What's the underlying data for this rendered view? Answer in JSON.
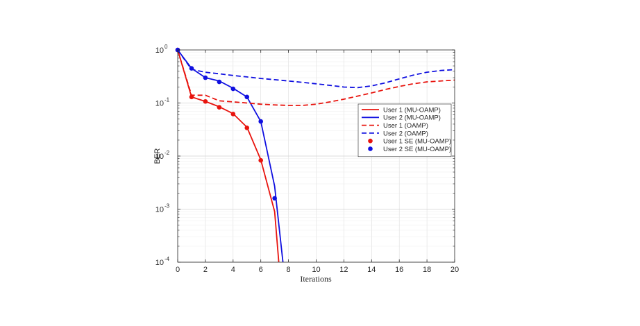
{
  "chart_data": {
    "type": "line",
    "xlabel": "Iterations",
    "ylabel": "BER",
    "xlim": [
      0,
      20
    ],
    "ylim": [
      0.0001,
      1
    ],
    "yscale": "log",
    "grid": true,
    "legend_position": "right",
    "xticks": [
      0,
      2,
      4,
      6,
      8,
      10,
      12,
      14,
      16,
      18,
      20
    ],
    "yticks": [
      {
        "value": 0.0001,
        "base": "10",
        "exp": "-4"
      },
      {
        "value": 0.001,
        "base": "10",
        "exp": "-3"
      },
      {
        "value": 0.01,
        "base": "10",
        "exp": "-2"
      },
      {
        "value": 0.1,
        "base": "10",
        "exp": "-1"
      },
      {
        "value": 1,
        "base": "10",
        "exp": "0"
      }
    ],
    "series": [
      {
        "name": "User 1 (MU-OAMP)",
        "color": "#e8140e",
        "style": "solid",
        "marker": "none",
        "x": [
          0,
          1,
          2,
          3,
          4,
          5,
          6,
          7,
          7.3
        ],
        "y": [
          1.0,
          0.13,
          0.107,
          0.085,
          0.063,
          0.035,
          0.0085,
          0.0009,
          0.0001
        ]
      },
      {
        "name": "User 2 (MU-OAMP)",
        "color": "#1010e0",
        "style": "solid",
        "marker": "none",
        "x": [
          0,
          1,
          2,
          3,
          4,
          5,
          6,
          7,
          7.6
        ],
        "y": [
          1.0,
          0.45,
          0.3,
          0.26,
          0.19,
          0.13,
          0.045,
          0.0027,
          0.0001
        ]
      },
      {
        "name": "User 1 (OAMP)",
        "color": "#e8140e",
        "style": "dashed",
        "marker": "none",
        "x": [
          0,
          1,
          2,
          3,
          4,
          5,
          6,
          7,
          8,
          9,
          10,
          11,
          12,
          13,
          14,
          15,
          16,
          17,
          18,
          19,
          20
        ],
        "y": [
          1.0,
          0.14,
          0.14,
          0.11,
          0.105,
          0.1,
          0.095,
          0.092,
          0.09,
          0.09,
          0.095,
          0.105,
          0.118,
          0.135,
          0.155,
          0.18,
          0.205,
          0.23,
          0.25,
          0.26,
          0.27
        ]
      },
      {
        "name": "User 2 (OAMP)",
        "color": "#1010e0",
        "style": "dashed",
        "marker": "none",
        "x": [
          0,
          1,
          2,
          3,
          4,
          5,
          6,
          7,
          8,
          9,
          10,
          11,
          12,
          13,
          14,
          15,
          16,
          17,
          18,
          19,
          20
        ],
        "y": [
          1.0,
          0.43,
          0.38,
          0.355,
          0.33,
          0.31,
          0.29,
          0.275,
          0.26,
          0.245,
          0.23,
          0.215,
          0.2,
          0.195,
          0.21,
          0.24,
          0.285,
          0.335,
          0.38,
          0.41,
          0.425
        ]
      },
      {
        "name": "User 1 SE (MU-OAMP)",
        "color": "#e8140e",
        "style": "none",
        "marker": "circle",
        "x": [
          0,
          1,
          2,
          3,
          4,
          5,
          6
        ],
        "y": [
          1.0,
          0.13,
          0.107,
          0.083,
          0.062,
          0.034,
          0.0083
        ]
      },
      {
        "name": "User 2 SE (MU-OAMP)",
        "color": "#1010e0",
        "style": "none",
        "marker": "circle",
        "x": [
          0,
          1,
          2,
          3,
          4,
          5,
          6,
          7
        ],
        "y": [
          1.0,
          0.45,
          0.3,
          0.25,
          0.185,
          0.13,
          0.045,
          0.0016
        ]
      }
    ]
  }
}
